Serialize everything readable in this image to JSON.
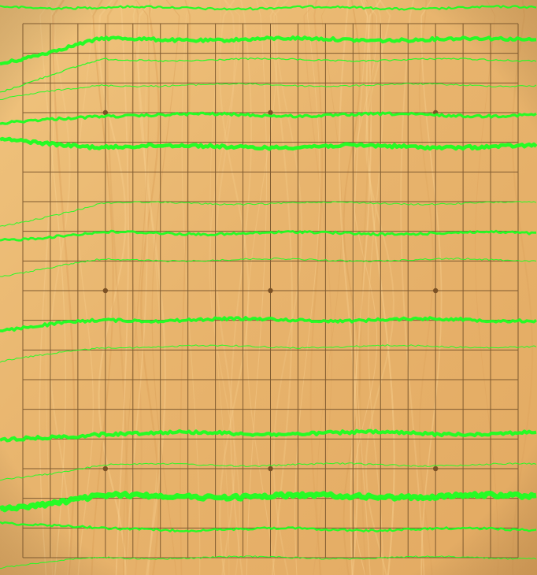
{
  "board": {
    "columns": 19,
    "rows": 19,
    "star_points": [
      [
        3,
        3
      ],
      [
        9,
        3
      ],
      [
        15,
        3
      ],
      [
        3,
        9
      ],
      [
        9,
        9
      ],
      [
        15,
        9
      ],
      [
        3,
        15
      ],
      [
        9,
        15
      ],
      [
        15,
        15
      ]
    ],
    "colors": {
      "wood_light": "#efc27c",
      "wood_dark": "#dca15a",
      "grid_line": "#7e5a30",
      "star_point": "#7b5125",
      "overlay_trace": "#1cff22"
    }
  }
}
